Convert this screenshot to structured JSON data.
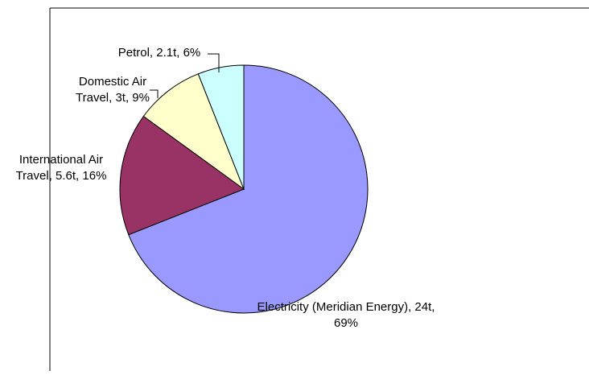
{
  "chart_data": {
    "type": "pie",
    "slices": [
      {
        "name": "Electricity (Meridian Energy)",
        "value": 24,
        "percent": 69,
        "label_lines": [
          "Electricity (Meridian Energy), 24t,",
          "69%"
        ],
        "color": "#9999FF"
      },
      {
        "name": "International Air Travel",
        "value": 5.6,
        "percent": 16,
        "label_lines": [
          "International Air",
          "Travel, 5.6t, 16%"
        ],
        "color": "#993366"
      },
      {
        "name": "Domestic Air Travel",
        "value": 3,
        "percent": 9,
        "label_lines": [
          "Domestic Air",
          "Travel, 3t, 9%"
        ],
        "color": "#FFFFCC"
      },
      {
        "name": "Petrol",
        "value": 2.1,
        "percent": 6,
        "label_lines": [
          "Petrol, 2.1t, 6%"
        ],
        "color": "#CCFFFF"
      }
    ],
    "legend": "none"
  }
}
